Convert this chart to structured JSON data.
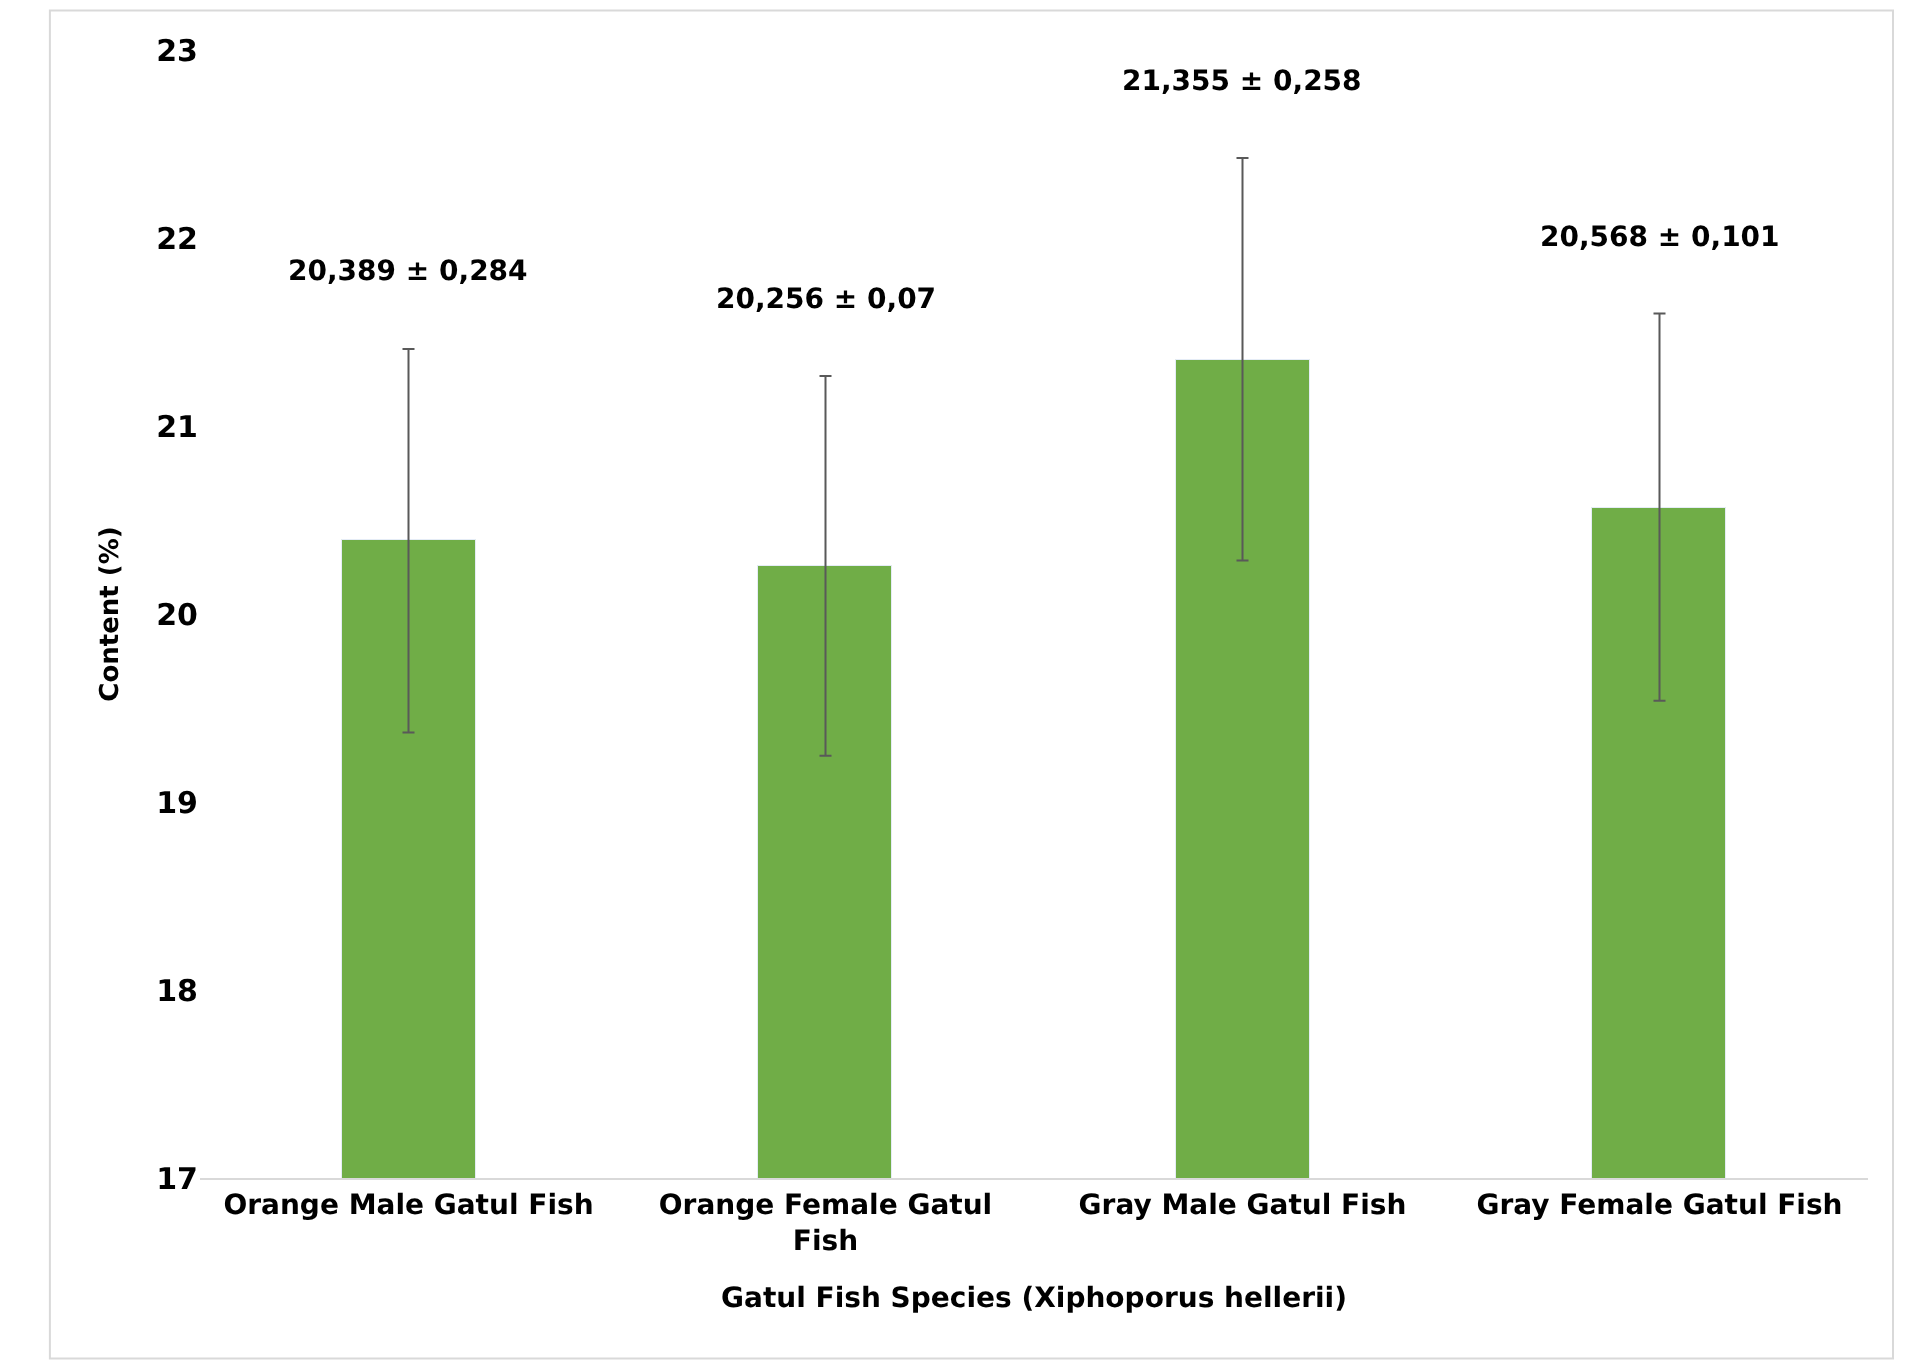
{
  "chart_data": {
    "type": "bar",
    "xlabel": "Gatul Fish Species (Xiphoporus hellerii)",
    "ylabel": "Content (%)",
    "categories": [
      "Orange Male Gatul Fish",
      "Orange Female Gatul Fish",
      "Gray Male Gatul Fish",
      "Gray Female Gatul Fish"
    ],
    "values": [
      20.389,
      20.256,
      21.355,
      20.568
    ],
    "errors": [
      1.02,
      1.01,
      1.07,
      1.03
    ],
    "annotations": [
      {
        "text": "20,389 ± 0,284",
        "x": "Orange Male Gatul Fish",
        "y": 21.41
      },
      {
        "text": "20,256 ± 0,07",
        "x": "Orange Female Gatul Fish",
        "y": 21.27
      },
      {
        "text": "21,355 ± 0,258",
        "x": "Gray Male Gatul Fish",
        "y": 22.43
      },
      {
        "text": "20,568 ± 0,101",
        "x": "Gray Female Gatul Fish",
        "y": 21.6
      }
    ],
    "color": "#70ad47",
    "ylim": [
      17,
      23
    ],
    "yticks": [
      17,
      18,
      19,
      20,
      21,
      22,
      23
    ],
    "legend": false
  }
}
